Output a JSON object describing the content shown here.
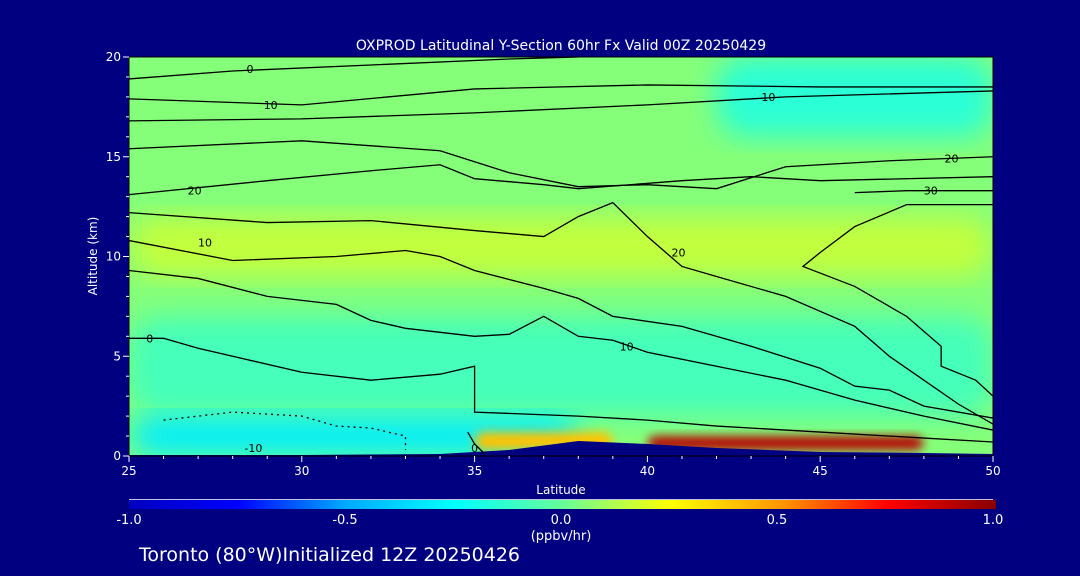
{
  "chart_data": {
    "type": "heatmap",
    "title": "OXPROD Latitudinal Y-Section 60hr  Fx Valid 00Z 20250429",
    "xlabel": "Latitude",
    "ylabel": "Altitude (km)",
    "xlim": [
      25,
      50
    ],
    "ylim": [
      0,
      20
    ],
    "xticks": [
      "25",
      "30",
      "35",
      "40",
      "45",
      "50"
    ],
    "yticks": [
      "0",
      "5",
      "10",
      "15",
      "20"
    ],
    "colorbar": {
      "range": [
        -1.0,
        1.0
      ],
      "ticks": [
        "-1.0",
        "-0.5",
        "0.0",
        "0.5",
        "1.0"
      ],
      "unit": "(ppbv/hr)",
      "colors": [
        "#0000c0",
        "#0000ff",
        "#00aaff",
        "#00ffff",
        "#66ff99",
        "#ffff00",
        "#ff9900",
        "#ff0000",
        "#880000"
      ]
    },
    "footer": "Toronto (80°W)Initialized 12Z 20250426",
    "field_regions": [
      {
        "lat": [
          25,
          50
        ],
        "alt": [
          0,
          20
        ],
        "value": 0.05
      },
      {
        "lat": [
          42,
          50
        ],
        "alt": [
          16,
          20
        ],
        "value": -0.15
      },
      {
        "lat": [
          25,
          50
        ],
        "alt": [
          9,
          12
        ],
        "value": 0.15
      },
      {
        "lat": [
          25,
          50
        ],
        "alt": [
          2,
          7
        ],
        "value": -0.08
      },
      {
        "lat": [
          25,
          38
        ],
        "alt": [
          0,
          2
        ],
        "value": -0.3
      },
      {
        "lat": [
          35,
          39
        ],
        "alt": [
          0.3,
          1.2
        ],
        "value": 0.4
      },
      {
        "lat": [
          40,
          48
        ],
        "alt": [
          0.3,
          1.0
        ],
        "value": 0.9
      }
    ],
    "contours": [
      {
        "label": "0",
        "label_at": [
          28.5,
          19.4
        ],
        "dashed": false,
        "points": [
          [
            25,
            18.9
          ],
          [
            28,
            19.3
          ],
          [
            32,
            19.6
          ],
          [
            36,
            19.9
          ],
          [
            38,
            20
          ]
        ]
      },
      {
        "label": "10",
        "label_at": [
          29.1,
          17.6
        ],
        "dashed": false,
        "points": [
          [
            25,
            17.9
          ],
          [
            30,
            17.6
          ],
          [
            35,
            18.4
          ],
          [
            40,
            18.6
          ],
          [
            45,
            18.5
          ],
          [
            50,
            18.5
          ]
        ]
      },
      {
        "label": "10",
        "label_at": [
          43.5,
          18.0
        ],
        "dashed": false,
        "points": [
          [
            25,
            16.8
          ],
          [
            30,
            16.9
          ],
          [
            35,
            17.2
          ],
          [
            40,
            17.6
          ],
          [
            44,
            18.0
          ],
          [
            50,
            18.3
          ]
        ]
      },
      {
        "label": "20",
        "label_at": [
          48.8,
          14.9
        ],
        "dashed": false,
        "points": [
          [
            25,
            15.4
          ],
          [
            30,
            15.8
          ],
          [
            34,
            15.3
          ],
          [
            36,
            14.2
          ],
          [
            38,
            13.5
          ],
          [
            40,
            13.6
          ],
          [
            42,
            13.4
          ],
          [
            44,
            14.5
          ],
          [
            47,
            14.8
          ],
          [
            50,
            15.0
          ]
        ]
      },
      {
        "label": "20",
        "label_at": [
          26.9,
          13.3
        ],
        "dashed": false,
        "points": [
          [
            25,
            13.1
          ],
          [
            29,
            13.8
          ],
          [
            32,
            14.3
          ],
          [
            34,
            14.6
          ],
          [
            35,
            13.9
          ],
          [
            37,
            13.6
          ],
          [
            38,
            13.4
          ],
          [
            41,
            13.8
          ],
          [
            43,
            14.0
          ],
          [
            45,
            13.8
          ],
          [
            50,
            14.0
          ]
        ]
      },
      {
        "label": "30",
        "label_at": [
          48.2,
          13.3
        ],
        "dashed": false,
        "points": [
          [
            46,
            13.2
          ],
          [
            47.5,
            13.3
          ],
          [
            50,
            13.3
          ]
        ]
      },
      {
        "label": "20",
        "label_at": [
          40.9,
          10.2
        ],
        "dashed": false,
        "points": [
          [
            25,
            12.2
          ],
          [
            29,
            11.7
          ],
          [
            32,
            11.8
          ],
          [
            35,
            11.3
          ],
          [
            37,
            11.0
          ],
          [
            38,
            12.0
          ],
          [
            39,
            12.7
          ],
          [
            40,
            11.0
          ],
          [
            41,
            9.5
          ],
          [
            42,
            9.0
          ],
          [
            44,
            8.0
          ],
          [
            46,
            6.5
          ],
          [
            47,
            5.0
          ],
          [
            48,
            3.8
          ],
          [
            49,
            2.6
          ],
          [
            50,
            1.6
          ]
        ]
      },
      {
        "label": "",
        "label_at": null,
        "dashed": false,
        "points": [
          [
            50,
            12.6
          ],
          [
            47.5,
            12.6
          ],
          [
            46,
            11.5
          ],
          [
            45,
            10.2
          ],
          [
            44.5,
            9.5
          ],
          [
            46,
            8.5
          ],
          [
            47.5,
            7.0
          ],
          [
            48.5,
            5.5
          ],
          [
            48.5,
            4.5
          ],
          [
            49.5,
            3.8
          ],
          [
            50,
            3.0
          ]
        ]
      },
      {
        "label": "10",
        "label_at": [
          27.2,
          10.7
        ],
        "dashed": false,
        "points": [
          [
            25,
            10.8
          ],
          [
            28,
            9.8
          ],
          [
            31,
            10.0
          ],
          [
            33,
            10.3
          ],
          [
            34,
            10.0
          ],
          [
            35,
            9.3
          ],
          [
            37,
            8.4
          ],
          [
            38,
            7.9
          ],
          [
            39,
            7.0
          ],
          [
            41,
            6.5
          ],
          [
            43,
            5.5
          ],
          [
            45,
            4.4
          ],
          [
            46,
            3.5
          ],
          [
            47,
            3.3
          ],
          [
            48,
            2.5
          ],
          [
            50,
            1.9
          ]
        ]
      },
      {
        "label": "10",
        "label_at": [
          39.4,
          5.5
        ],
        "dashed": false,
        "points": [
          [
            25,
            9.3
          ],
          [
            27,
            8.9
          ],
          [
            29,
            8.0
          ],
          [
            31,
            7.6
          ],
          [
            32,
            6.8
          ],
          [
            33,
            6.4
          ],
          [
            35,
            6.0
          ],
          [
            36,
            6.1
          ],
          [
            37,
            7.0
          ],
          [
            38,
            6.0
          ],
          [
            39,
            5.8
          ],
          [
            40,
            5.2
          ],
          [
            42,
            4.5
          ],
          [
            44,
            3.8
          ],
          [
            46,
            2.8
          ],
          [
            48,
            2.0
          ],
          [
            50,
            1.3
          ]
        ]
      },
      {
        "label": "0",
        "label_at": [
          25.6,
          5.9
        ],
        "dashed": false,
        "points": [
          [
            25,
            5.9
          ],
          [
            26,
            5.9
          ],
          [
            27,
            5.4
          ],
          [
            28,
            5.0
          ],
          [
            30,
            4.2
          ],
          [
            32,
            3.8
          ],
          [
            34,
            4.1
          ],
          [
            35,
            4.5
          ],
          [
            35,
            2.2
          ],
          [
            38,
            2.0
          ],
          [
            40,
            1.8
          ],
          [
            42,
            1.5
          ],
          [
            45,
            1.2
          ],
          [
            48,
            0.9
          ],
          [
            50,
            0.7
          ]
        ]
      },
      {
        "label": "-10",
        "label_at": [
          28.6,
          0.4
        ],
        "dashed": true,
        "points": [
          [
            26,
            1.8
          ],
          [
            28,
            2.2
          ],
          [
            30,
            2.0
          ],
          [
            31,
            1.5
          ],
          [
            32,
            1.4
          ],
          [
            33,
            1.0
          ],
          [
            33,
            0.3
          ]
        ]
      },
      {
        "label": "0",
        "label_at": [
          35,
          0.4
        ],
        "dashed": false,
        "points": [
          [
            34.8,
            1.2
          ],
          [
            35,
            0.6
          ],
          [
            35.3,
            0.1
          ]
        ]
      }
    ],
    "terrain": [
      [
        25,
        0.05
      ],
      [
        30,
        0.05
      ],
      [
        34,
        0.1
      ],
      [
        36,
        0.3
      ],
      [
        38,
        0.75
      ],
      [
        40,
        0.6
      ],
      [
        42,
        0.4
      ],
      [
        45,
        0.2
      ],
      [
        48,
        0.15
      ],
      [
        50,
        0.1
      ]
    ]
  }
}
